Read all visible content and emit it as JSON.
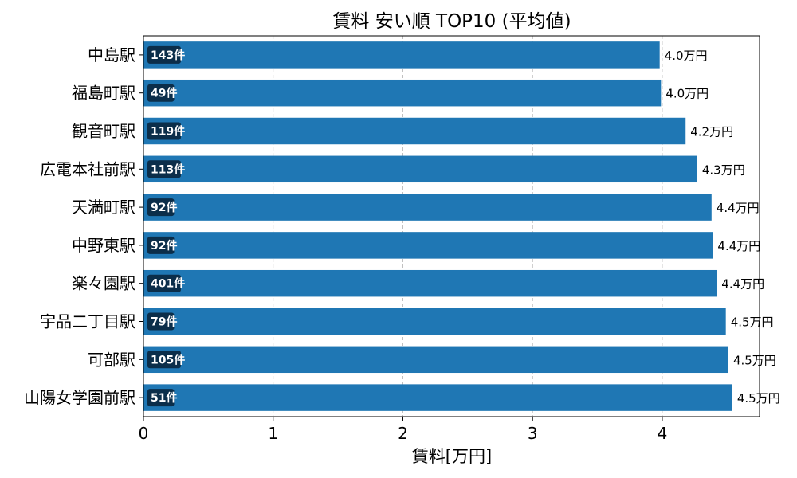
{
  "chart_data": {
    "type": "bar",
    "orientation": "horizontal",
    "title": "賃料 安い順 TOP10 (平均値)",
    "xlabel": "賃料[万円]",
    "ylabel": "",
    "xlim": [
      0,
      4.75
    ],
    "xticks": [
      0,
      1,
      2,
      3,
      4
    ],
    "xtick_labels": [
      "0",
      "1",
      "2",
      "3",
      "4"
    ],
    "grid": "x, dashed",
    "bar_color": "#1f77b4",
    "count_badge_color": "#0b2e4a",
    "categories": [
      "中島駅",
      "福島町駅",
      "観音町駅",
      "広電本社前駅",
      "天満町駅",
      "中野東駅",
      "楽々園駅",
      "宇品二丁目駅",
      "可部駅",
      "山陽女学園前駅"
    ],
    "values": [
      3.98,
      3.99,
      4.18,
      4.27,
      4.38,
      4.39,
      4.42,
      4.49,
      4.51,
      4.54
    ],
    "value_labels": [
      "4.0万円",
      "4.0万円",
      "4.2万円",
      "4.3万円",
      "4.4万円",
      "4.4万円",
      "4.4万円",
      "4.5万円",
      "4.5万円",
      "4.5万円"
    ],
    "count_labels": [
      "143件",
      "49件",
      "119件",
      "113件",
      "92件",
      "92件",
      "401件",
      "79件",
      "105件",
      "51件"
    ]
  }
}
